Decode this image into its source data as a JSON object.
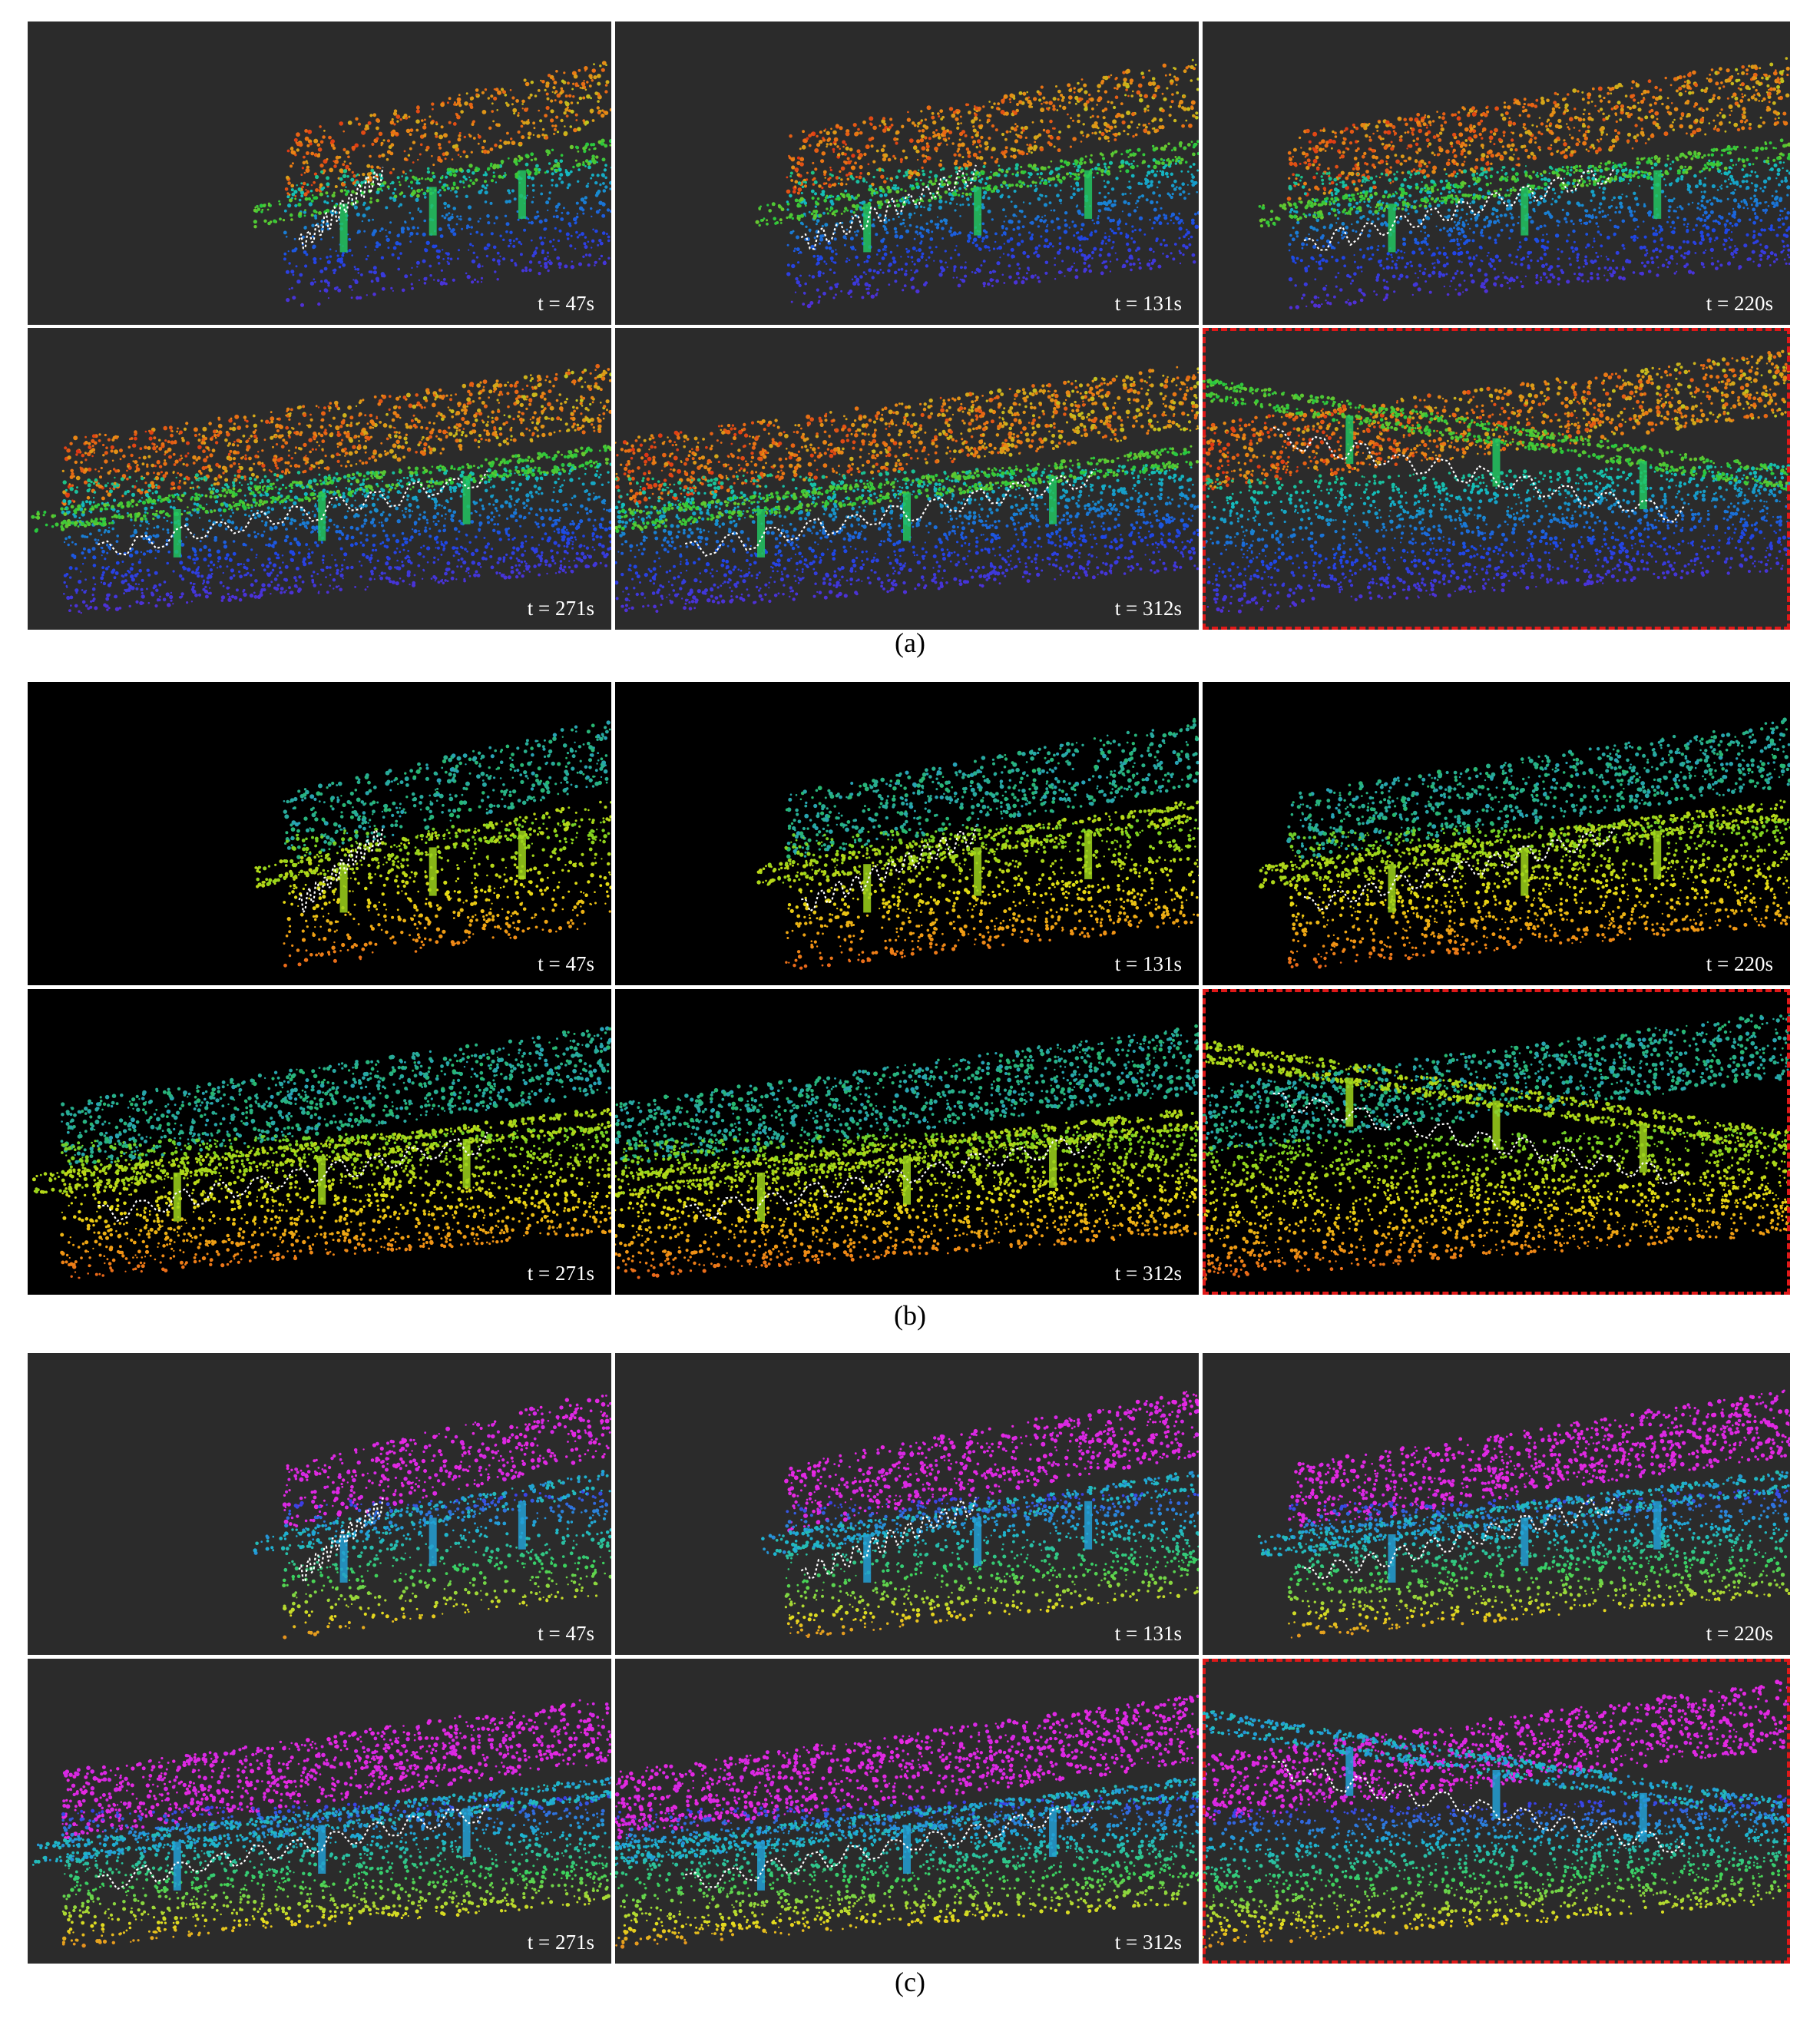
{
  "figure": {
    "groups": [
      {
        "id": "a",
        "caption": "(a)",
        "background": "#2b2b2b",
        "colormap": "rainbow",
        "panels": [
          {
            "time_label": "t = 47s",
            "stage": 0.25,
            "highlighted": false
          },
          {
            "time_label": "t = 131s",
            "stage": 0.5,
            "highlighted": false
          },
          {
            "time_label": "t = 220s",
            "stage": 0.75,
            "highlighted": false
          },
          {
            "time_label": "t = 271s",
            "stage": 0.9,
            "highlighted": false
          },
          {
            "time_label": "t = 312s",
            "stage": 1.0,
            "highlighted": false
          },
          {
            "time_label": "",
            "stage": 1.0,
            "highlighted": true
          }
        ]
      },
      {
        "id": "b",
        "caption": "(b)",
        "background": "#000000",
        "colormap": "green-orange",
        "panels": [
          {
            "time_label": "t = 47s",
            "stage": 0.25,
            "highlighted": false
          },
          {
            "time_label": "t = 131s",
            "stage": 0.5,
            "highlighted": false
          },
          {
            "time_label": "t = 220s",
            "stage": 0.75,
            "highlighted": false
          },
          {
            "time_label": "t = 271s",
            "stage": 0.9,
            "highlighted": false
          },
          {
            "time_label": "t = 312s",
            "stage": 1.0,
            "highlighted": false
          },
          {
            "time_label": "",
            "stage": 1.0,
            "highlighted": true
          }
        ]
      },
      {
        "id": "c",
        "caption": "(c)",
        "background": "#2b2b2b",
        "colormap": "magenta-blue-yellow",
        "panels": [
          {
            "time_label": "t = 47s",
            "stage": 0.25,
            "highlighted": false
          },
          {
            "time_label": "t = 131s",
            "stage": 0.5,
            "highlighted": false
          },
          {
            "time_label": "t = 220s",
            "stage": 0.75,
            "highlighted": false
          },
          {
            "time_label": "t = 271s",
            "stage": 0.9,
            "highlighted": false
          },
          {
            "time_label": "t = 312s",
            "stage": 1.0,
            "highlighted": false
          },
          {
            "time_label": "",
            "stage": 1.0,
            "highlighted": true
          }
        ]
      }
    ],
    "colors": {
      "highlight_border": "#e01818",
      "trajectory": "#ffffff",
      "label_text": "#ffffff"
    }
  }
}
